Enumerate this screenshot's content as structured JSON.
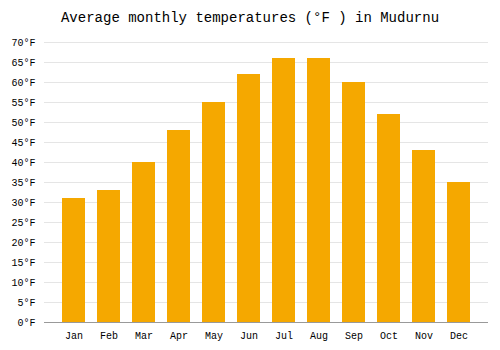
{
  "chart_data": {
    "type": "bar",
    "title": "Average monthly temperatures (°F ) in Mudurnu",
    "categories": [
      "Jan",
      "Feb",
      "Mar",
      "Apr",
      "May",
      "Jun",
      "Jul",
      "Aug",
      "Sep",
      "Oct",
      "Nov",
      "Dec"
    ],
    "values": [
      31,
      33,
      40,
      48,
      55,
      62,
      66,
      66,
      60,
      52,
      43,
      35
    ],
    "color": "#F5A800",
    "ylim": [
      0,
      70
    ],
    "yticks": [
      {
        "value": 0,
        "label": "0°F"
      },
      {
        "value": 5,
        "label": "5°F"
      },
      {
        "value": 10,
        "label": "10°F"
      },
      {
        "value": 15,
        "label": "15°F"
      },
      {
        "value": 20,
        "label": "20°F"
      },
      {
        "value": 25,
        "label": "25°F"
      },
      {
        "value": 30,
        "label": "30°F"
      },
      {
        "value": 35,
        "label": "35°F"
      },
      {
        "value": 40,
        "label": "40°F"
      },
      {
        "value": 45,
        "label": "45°F"
      },
      {
        "value": 50,
        "label": "50°F"
      },
      {
        "value": 55,
        "label": "55°F"
      },
      {
        "value": 60,
        "label": "60°F"
      },
      {
        "value": 65,
        "label": "65°F"
      },
      {
        "value": 70,
        "label": "70°F"
      }
    ],
    "grid": true
  }
}
